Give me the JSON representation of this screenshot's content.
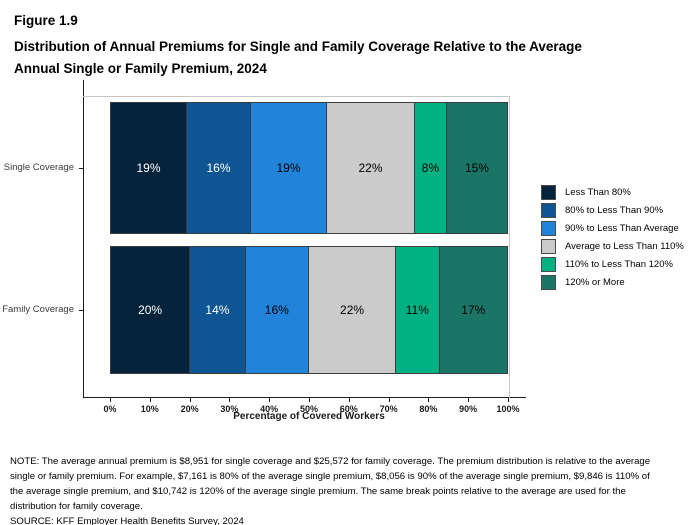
{
  "header": {
    "figure_number": "Figure 1.9",
    "title_lines": [
      "Distribution of Annual Premiums for Single and Family Coverage Relative to the Average",
      "Annual Single or Family Premium, 2024"
    ]
  },
  "chart_data": {
    "type": "bar",
    "orientation": "horizontal",
    "stacked": true,
    "grid": false,
    "legend_position": "right",
    "categories": [
      "Single Coverage",
      "Family Coverage"
    ],
    "series": [
      {
        "name": "Less Than 80%",
        "color": "#06233c",
        "label_color": "#ffffff",
        "values": [
          19,
          20
        ]
      },
      {
        "name": "80% to Less Than 90%",
        "color": "#0e5693",
        "label_color": "#ffffff",
        "values": [
          16,
          14
        ]
      },
      {
        "name": "90% to Less Than Average",
        "color": "#2183d9",
        "label_color": "#000000",
        "values": [
          19,
          16
        ]
      },
      {
        "name": "Average to Less Than 110%",
        "color": "#cbcbcb",
        "label_color": "#000000",
        "values": [
          22,
          22
        ]
      },
      {
        "name": "110% to Less Than 120%",
        "color": "#00b183",
        "label_color": "#000000",
        "values": [
          8,
          11
        ]
      },
      {
        "name": "120% or More",
        "color": "#1b7566",
        "label_color": "#000000",
        "values": [
          15,
          17
        ]
      }
    ],
    "value_suffix": "%",
    "xlabel": "Percentage of Covered Workers",
    "x_ticks": [
      "0%",
      "10%",
      "20%",
      "30%",
      "40%",
      "50%",
      "60%",
      "70%",
      "80%",
      "90%",
      "100%"
    ],
    "xlim": [
      0,
      100
    ]
  },
  "footer": {
    "note_lines": [
      "NOTE: The average annual premium is $8,951 for single coverage and $25,572 for family coverage. The premium distribution is relative to the average",
      "single or family premium. For example, $7,161 is 80% of the average single premium, $8,056 is 90% of the average single premium, $9,846 is 110% of",
      "the average single premium, and $10,742 is 120% of the average single premium. The same break points relative to the average are used for the",
      "distribution for family coverage."
    ],
    "source": "SOURCE: KFF Employer Health Benefits Survey, 2024"
  }
}
